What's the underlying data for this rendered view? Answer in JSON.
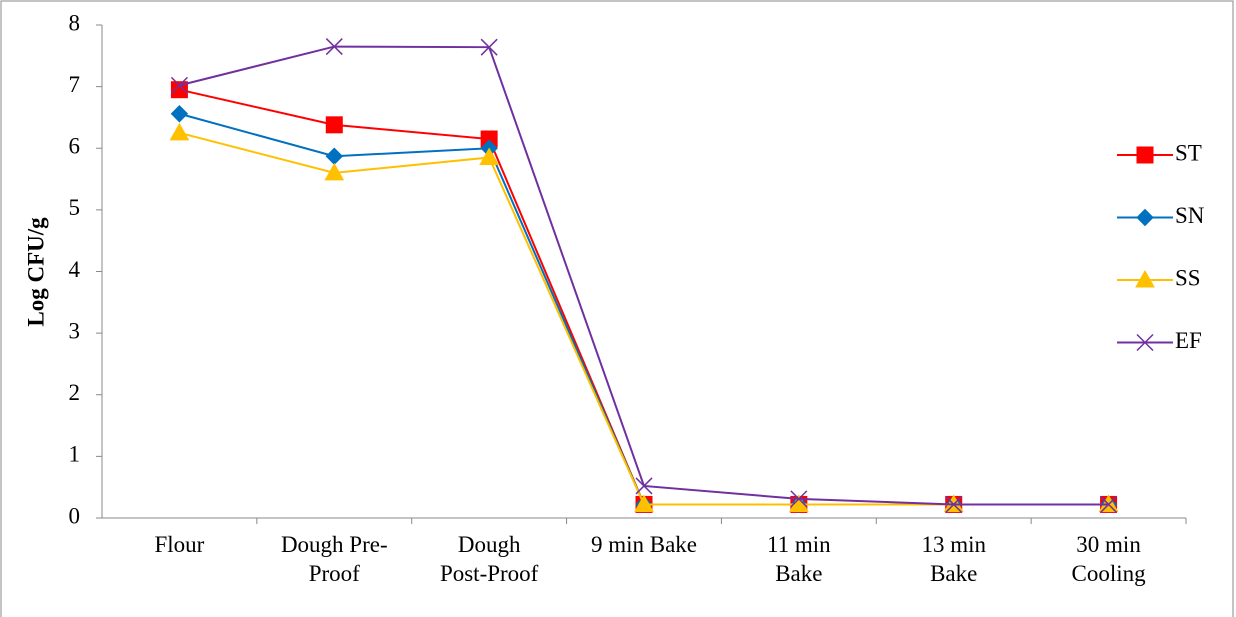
{
  "chart_data": {
    "type": "line",
    "y_label": "Log CFU/g",
    "categories": [
      "Flour",
      "Dough Pre-Proof",
      "Dough Post-Proof",
      "9 min Bake",
      "11 min Bake",
      "13 min Bake",
      "30 min Cooling"
    ],
    "series": [
      {
        "name": "ST",
        "color": "#ff0000",
        "marker": "square",
        "values": [
          6.95,
          6.38,
          6.15,
          0.22,
          0.22,
          0.22,
          0.22
        ]
      },
      {
        "name": "SN",
        "color": "#0070c0",
        "marker": "diamond",
        "values": [
          6.56,
          5.87,
          6.0,
          0.22,
          0.22,
          0.22,
          0.22
        ]
      },
      {
        "name": "SS",
        "color": "#ffc000",
        "marker": "triangle",
        "values": [
          6.25,
          5.6,
          5.85,
          0.22,
          0.22,
          0.22,
          0.22
        ]
      },
      {
        "name": "EF",
        "color": "#7030a0",
        "marker": "x",
        "values": [
          7.02,
          7.65,
          7.64,
          0.52,
          0.31,
          0.22,
          0.22
        ]
      }
    ],
    "ylim": [
      0,
      8
    ],
    "yticks": [
      0,
      1,
      2,
      3,
      4,
      5,
      6,
      7,
      8
    ],
    "legend": "right",
    "grid": false
  }
}
